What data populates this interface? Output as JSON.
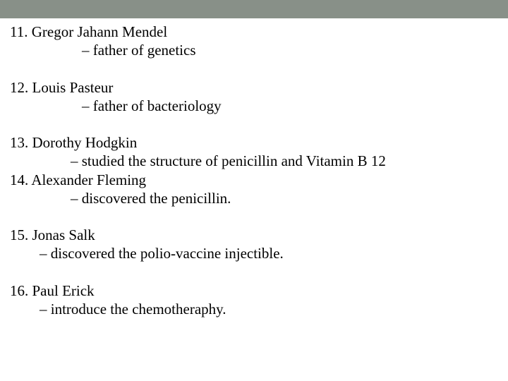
{
  "header_bar_color": "#889088",
  "background_color": "#ffffff",
  "text_color": "#000000",
  "font_family": "Times New Roman",
  "font_size_pt": 16,
  "entries": [
    {
      "number": "11.",
      "name": "Gregor Jahann Mendel",
      "desc": "– father of genetics"
    },
    {
      "number": "12.",
      "name": "Louis Pasteur",
      "desc": "– father of bacteriology"
    },
    {
      "number": "13.",
      "name": "Dorothy Hodgkin",
      "desc": "– studied the structure of penicillin and Vitamin B 12"
    },
    {
      "number": "14.",
      "name": "Alexander Fleming",
      "desc": "– discovered the penicillin."
    },
    {
      "number": "15.",
      "name": "Jonas Salk",
      "desc": "– discovered the polio-vaccine injectible."
    },
    {
      "number": "16.",
      "name": "Paul Erick",
      "desc": "– introduce the chemotheraphy."
    }
  ]
}
